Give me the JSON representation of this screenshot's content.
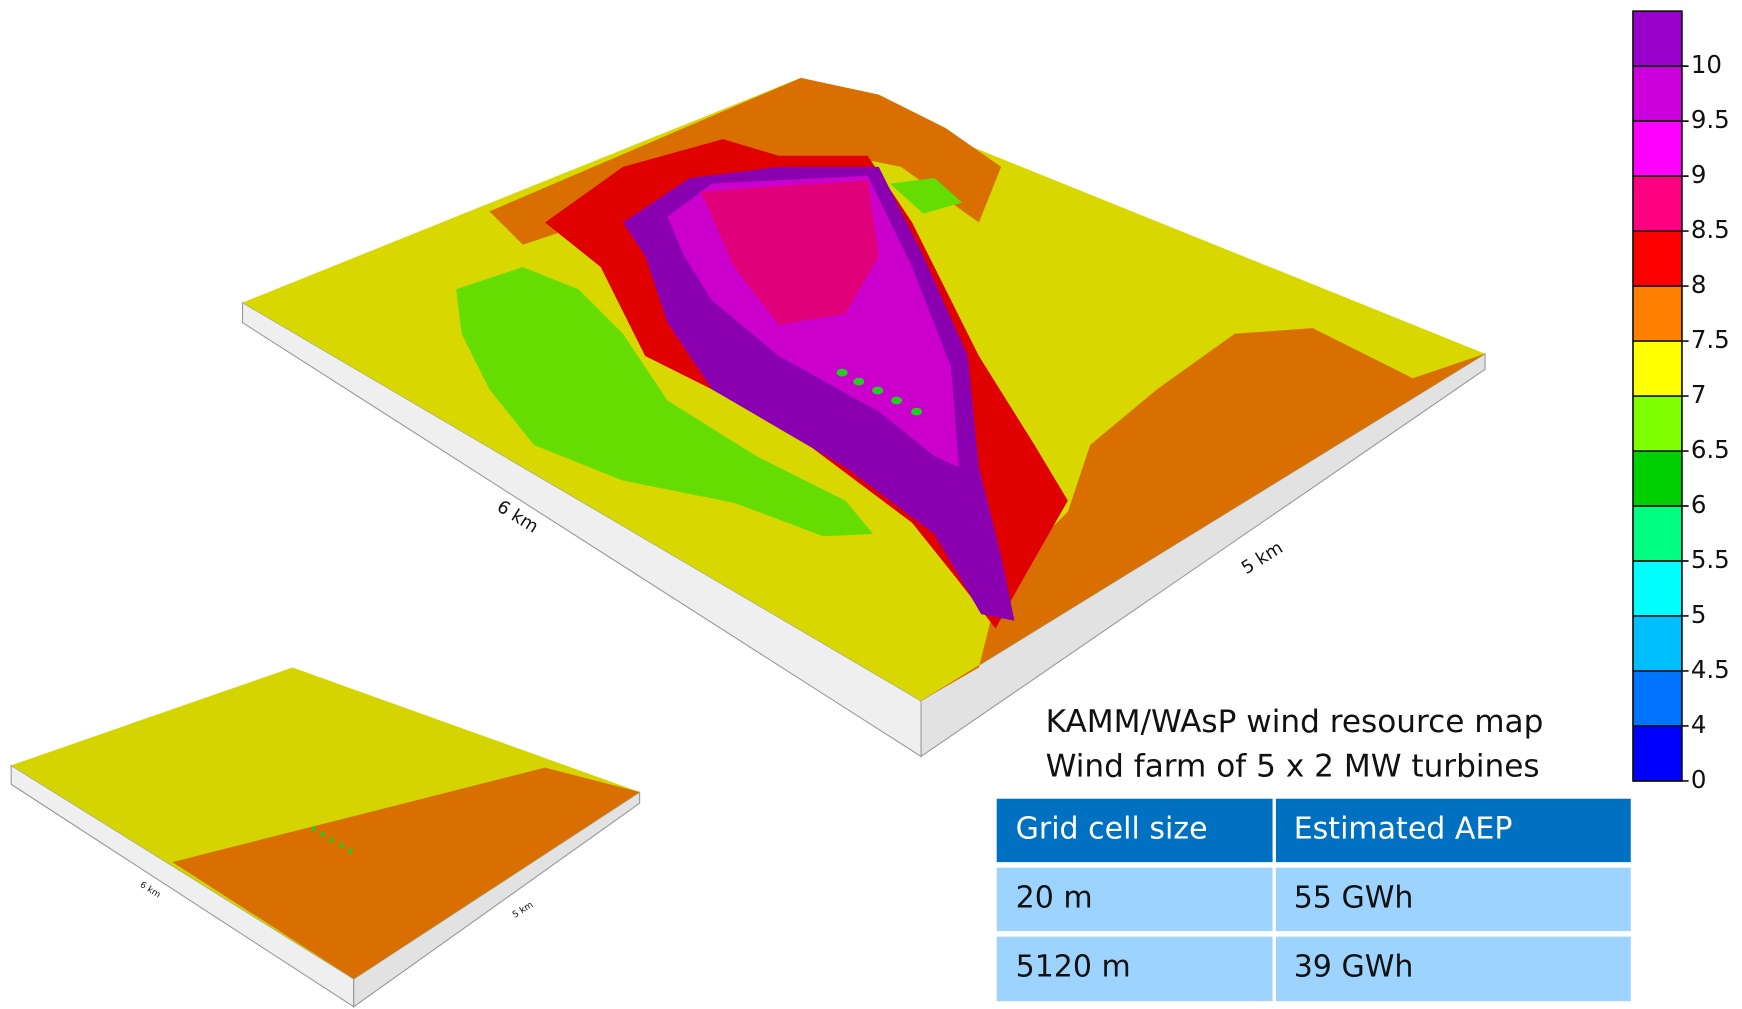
{
  "main_map": {
    "x_label": "6 km",
    "y_label": "5 km"
  },
  "inset_map": {
    "x_label": "6 km",
    "y_label": "5 km"
  },
  "colorbar": {
    "ticks": [
      0,
      4,
      4.5,
      5,
      5.5,
      6,
      6.5,
      7,
      7.5,
      8,
      8.5,
      9,
      9.5,
      10
    ],
    "colors": [
      "#0000ff",
      "#0073ff",
      "#00bfff",
      "#00ffff",
      "#00ff80",
      "#00d000",
      "#80ff00",
      "#ffff00",
      "#ff8000",
      "#ff0000",
      "#ff0080",
      "#ff00ff",
      "#cc00dd",
      "#9900cc"
    ]
  },
  "caption": [
    "KAMM/WAsP wind resource map",
    "Wind farm of 5 x 2 MW turbines"
  ],
  "table": {
    "header": [
      "Grid cell size",
      "Estimated AEP"
    ],
    "rows": [
      [
        "20 m",
        "55 GWh"
      ],
      [
        "5120 m",
        "39 GWh"
      ]
    ]
  }
}
